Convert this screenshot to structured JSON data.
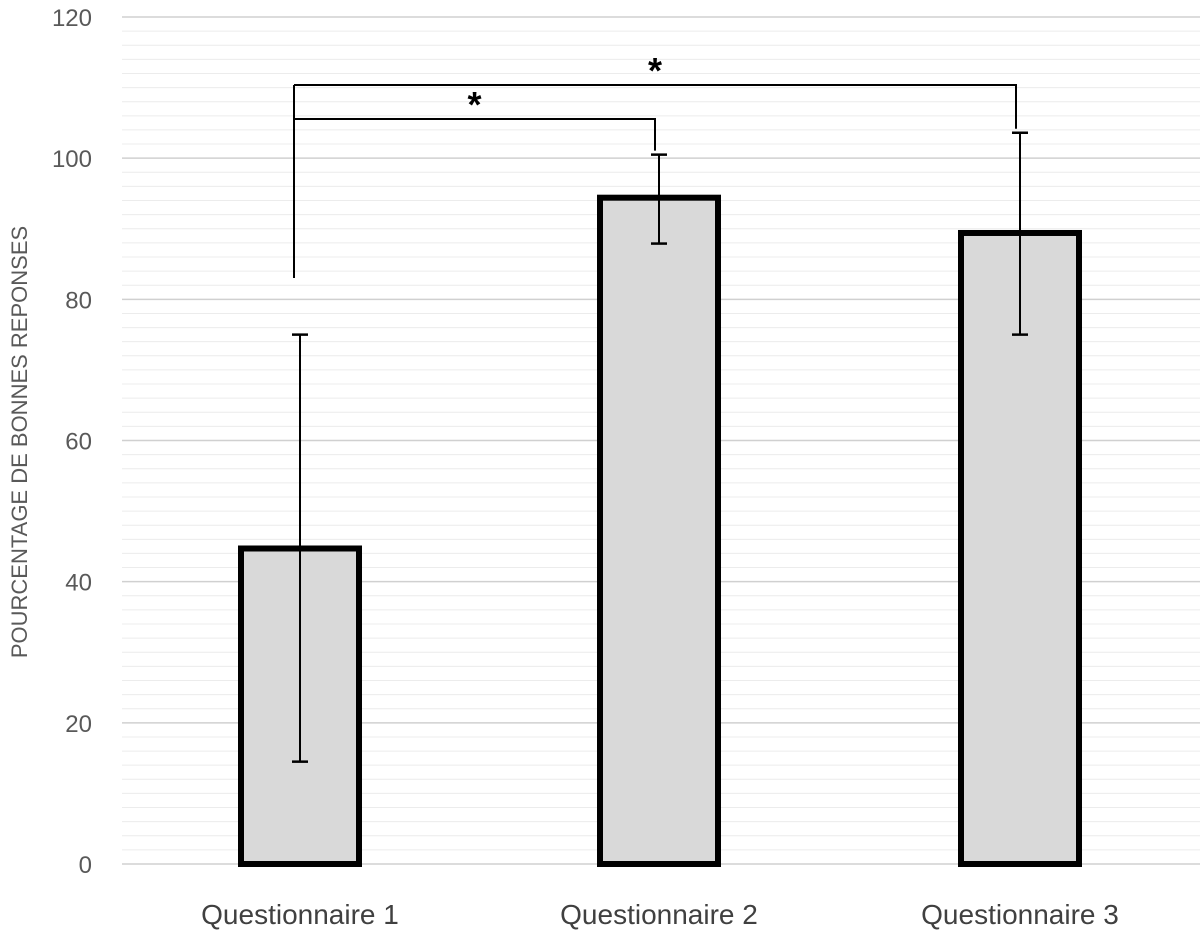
{
  "chart_data": {
    "type": "bar",
    "title": "",
    "xlabel": "",
    "ylabel": "POURCENTAGE DE BONNES REPONSES",
    "categories": [
      "Questionnaire 1",
      "Questionnaire 2",
      "Questionnaire 3"
    ],
    "values": [
      44.7,
      94.4,
      89.4
    ],
    "error_bars": [
      {
        "low": 14.5,
        "high": 75.0
      },
      {
        "low": 87.9,
        "high": 100.5
      },
      {
        "low": 75.0,
        "high": 103.6
      }
    ],
    "ylim": [
      0,
      120
    ],
    "yticks": [
      0,
      20,
      40,
      60,
      80,
      100,
      120
    ],
    "minor_gridlines_step": 2,
    "grid": true,
    "legend": "none",
    "significance": [
      {
        "from": 0,
        "to": 1,
        "label": "*"
      },
      {
        "from": 0,
        "to": 2,
        "label": "*"
      }
    ],
    "colors": {
      "bar_fill": "#d9d9d9",
      "bar_edge": "#000000",
      "major_grid": "#d0d0d0",
      "minor_grid": "#ececec",
      "tick_text": "#595959",
      "category_text": "#404040"
    }
  }
}
